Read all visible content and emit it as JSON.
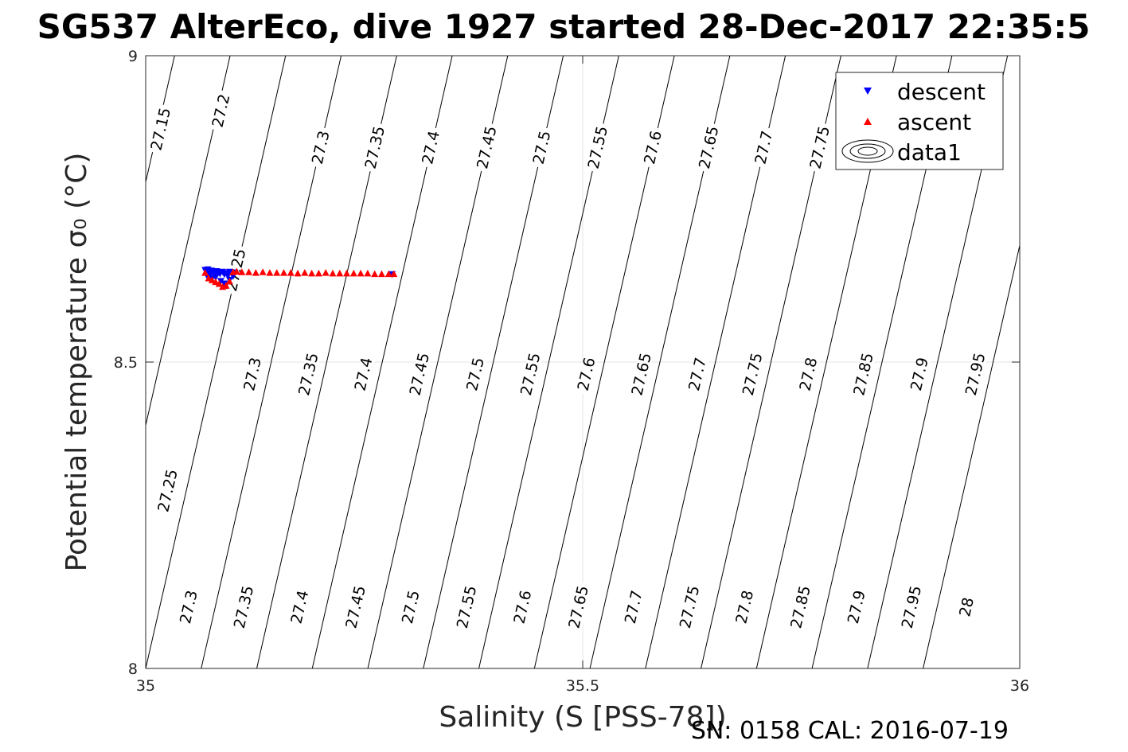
{
  "chart_data": {
    "type": "scatter",
    "title": "SG537 AlterEco, dive 1927 started 28-Dec-2017 22:35:5",
    "xlabel": "Salinity (S [PSS-78])",
    "ylabel": "Potential temperature σ₀ (°C)",
    "xlim": [
      35,
      36
    ],
    "ylim": [
      8,
      9
    ],
    "xticks": [
      35,
      35.5,
      36
    ],
    "xtick_labels": [
      "35",
      "35.5",
      "36"
    ],
    "yticks": [
      8,
      8.5,
      9
    ],
    "ytick_labels": [
      "8",
      "8.5",
      "9"
    ],
    "grid": true,
    "legend_position": "top-right",
    "legend": [
      {
        "label": "descent",
        "marker": "triangle-down",
        "color": "#0000ff"
      },
      {
        "label": "ascent",
        "marker": "triangle-up",
        "color": "#ff0000"
      },
      {
        "label": "data1",
        "marker": "contour",
        "color": "#000000"
      }
    ],
    "contours": {
      "color": "#000000",
      "levels": [
        27.15,
        27.2,
        27.25,
        27.3,
        27.35,
        27.4,
        27.45,
        27.5,
        27.55,
        27.6,
        27.65,
        27.7,
        27.75,
        27.8,
        27.85,
        27.9,
        27.95,
        28.0
      ],
      "labels": [
        {
          "text": "27.15",
          "s": 35.018,
          "t": 8.88
        },
        {
          "text": "27.2",
          "s": 35.087,
          "t": 8.91
        },
        {
          "text": "27.25",
          "s": 35.104,
          "t": 8.65
        },
        {
          "text": "27.3",
          "s": 35.201,
          "t": 8.85
        },
        {
          "text": "27.35",
          "s": 35.263,
          "t": 8.85
        },
        {
          "text": "27.4",
          "s": 35.327,
          "t": 8.85
        },
        {
          "text": "27.45",
          "s": 35.391,
          "t": 8.85
        },
        {
          "text": "27.5",
          "s": 35.454,
          "t": 8.85
        },
        {
          "text": "27.55",
          "s": 35.518,
          "t": 8.85
        },
        {
          "text": "27.6",
          "s": 35.581,
          "t": 8.85
        },
        {
          "text": "27.65",
          "s": 35.645,
          "t": 8.85
        },
        {
          "text": "27.7",
          "s": 35.708,
          "t": 8.85
        },
        {
          "text": "27.75",
          "s": 35.772,
          "t": 8.85
        },
        {
          "text": "27.3",
          "s": 35.123,
          "t": 8.48
        },
        {
          "text": "27.35",
          "s": 35.187,
          "t": 8.48
        },
        {
          "text": "27.4",
          "s": 35.25,
          "t": 8.48
        },
        {
          "text": "27.45",
          "s": 35.314,
          "t": 8.48
        },
        {
          "text": "27.5",
          "s": 35.378,
          "t": 8.48
        },
        {
          "text": "27.55",
          "s": 35.441,
          "t": 8.48
        },
        {
          "text": "27.6",
          "s": 35.505,
          "t": 8.48
        },
        {
          "text": "27.65",
          "s": 35.568,
          "t": 8.48
        },
        {
          "text": "27.7",
          "s": 35.632,
          "t": 8.48
        },
        {
          "text": "27.75",
          "s": 35.695,
          "t": 8.48
        },
        {
          "text": "27.8",
          "s": 35.759,
          "t": 8.48
        },
        {
          "text": "27.85",
          "s": 35.822,
          "t": 8.48
        },
        {
          "text": "27.9",
          "s": 35.886,
          "t": 8.48
        },
        {
          "text": "27.95",
          "s": 35.95,
          "t": 8.48
        },
        {
          "text": "27.25",
          "s": 35.026,
          "t": 8.29
        },
        {
          "text": "27.3",
          "s": 35.05,
          "t": 8.1
        },
        {
          "text": "27.35",
          "s": 35.113,
          "t": 8.1
        },
        {
          "text": "27.4",
          "s": 35.177,
          "t": 8.1
        },
        {
          "text": "27.45",
          "s": 35.241,
          "t": 8.1
        },
        {
          "text": "27.5",
          "s": 35.304,
          "t": 8.1
        },
        {
          "text": "27.55",
          "s": 35.368,
          "t": 8.1
        },
        {
          "text": "27.6",
          "s": 35.432,
          "t": 8.1
        },
        {
          "text": "27.65",
          "s": 35.496,
          "t": 8.1
        },
        {
          "text": "27.7",
          "s": 35.559,
          "t": 8.1
        },
        {
          "text": "27.75",
          "s": 35.623,
          "t": 8.1
        },
        {
          "text": "27.8",
          "s": 35.686,
          "t": 8.1
        },
        {
          "text": "27.85",
          "s": 35.75,
          "t": 8.1
        },
        {
          "text": "27.9",
          "s": 35.814,
          "t": 8.1
        },
        {
          "text": "27.95",
          "s": 35.877,
          "t": 8.1
        },
        {
          "text": "28",
          "s": 35.94,
          "t": 8.1
        }
      ]
    },
    "series": [
      {
        "name": "descent",
        "marker": "triangle-down",
        "color": "#0000ff",
        "x": [
          35.068,
          35.07,
          35.072,
          35.074,
          35.071,
          35.075,
          35.077,
          35.079,
          35.081,
          35.083,
          35.085,
          35.088,
          35.09,
          35.092,
          35.094,
          35.096,
          35.098,
          35.1,
          35.102,
          35.096,
          35.09,
          35.086,
          35.08,
          35.076,
          35.072,
          35.07,
          35.282
        ],
        "y": [
          8.65,
          8.646,
          8.648,
          8.644,
          8.651,
          8.649,
          8.647,
          8.645,
          8.648,
          8.646,
          8.644,
          8.647,
          8.643,
          8.645,
          8.641,
          8.647,
          8.645,
          8.64,
          8.646,
          8.634,
          8.628,
          8.632,
          8.638,
          8.637,
          8.639,
          8.641,
          8.643
        ]
      },
      {
        "name": "ascent",
        "marker": "triangle-up",
        "color": "#ff0000",
        "x": [
          35.068,
          35.072,
          35.076,
          35.08,
          35.084,
          35.088,
          35.092,
          35.096,
          35.1,
          35.104,
          35.11,
          35.118,
          35.126,
          35.134,
          35.142,
          35.15,
          35.158,
          35.166,
          35.174,
          35.182,
          35.19,
          35.198,
          35.206,
          35.214,
          35.222,
          35.23,
          35.238,
          35.246,
          35.254,
          35.262,
          35.27,
          35.278,
          35.284
        ],
        "y": [
          8.646,
          8.637,
          8.634,
          8.631,
          8.628,
          8.623,
          8.625,
          8.632,
          8.647,
          8.648,
          8.647,
          8.647,
          8.646,
          8.647,
          8.646,
          8.646,
          8.646,
          8.646,
          8.645,
          8.646,
          8.645,
          8.645,
          8.646,
          8.645,
          8.645,
          8.645,
          8.645,
          8.645,
          8.645,
          8.644,
          8.644,
          8.644,
          8.644
        ]
      }
    ]
  },
  "footer": {
    "serial_text": "SN: 0158  CAL: 2016-07-19"
  }
}
